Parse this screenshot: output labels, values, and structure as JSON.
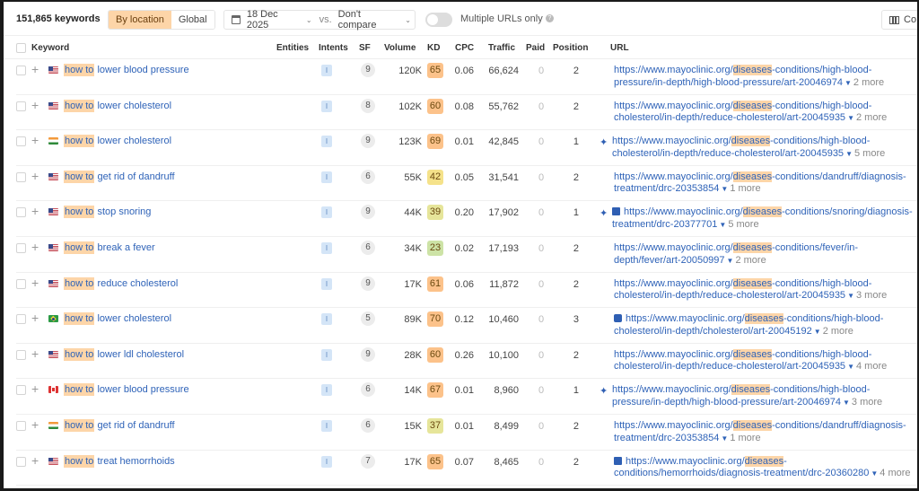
{
  "toolbar": {
    "keyword_count": "151,865 keywords",
    "scope_options": [
      {
        "label": "By location",
        "active": true
      },
      {
        "label": "Global",
        "active": false
      }
    ],
    "date": "18 Dec 2025",
    "vs_label": "vs.",
    "compare": "Don't compare",
    "toggle_label": "Multiple URLs only",
    "toggle_on": false,
    "columns_label": "Co"
  },
  "columns": [
    "Keyword",
    "Entities",
    "Intents",
    "SF",
    "Volume",
    "KD",
    "CPC",
    "Traffic",
    "Paid",
    "Position",
    "URL"
  ],
  "colors": {
    "accent_highlight": "#fdd5a8",
    "link": "#2f63b8",
    "intent_bg": "#d4e5f7",
    "kd_hard": "#fcc28a",
    "kd_medium": "#f5e28a",
    "kd_easy_medium": "#e6e59a",
    "kd_easy": "#cde3a6"
  },
  "rows": [
    {
      "flag": "us",
      "kw_hl": "how to",
      "kw_rest": " lower blood pressure",
      "intent": "I",
      "sf": "9",
      "volume": "120K",
      "kd": "65",
      "kd_color": "#fcc28a",
      "cpc": "0.06",
      "traffic": "66,624",
      "paid": "0",
      "position": "2",
      "feature": "",
      "url_pre": "https://www.mayoclinic.org/",
      "url_hl": "diseases",
      "url_post": "-conditions/high-blood-pressure/in-depth/high-blood-pressure/art-20046974",
      "more": "2 more"
    },
    {
      "flag": "us",
      "kw_hl": "how to",
      "kw_rest": " lower cholesterol",
      "intent": "I",
      "sf": "8",
      "volume": "102K",
      "kd": "60",
      "kd_color": "#fcc28a",
      "cpc": "0.08",
      "traffic": "55,762",
      "paid": "0",
      "position": "2",
      "feature": "",
      "url_pre": "https://www.mayoclinic.org/",
      "url_hl": "diseases",
      "url_post": "-conditions/high-blood-cholesterol/in-depth/reduce-cholesterol/art-20045935",
      "more": "2 more"
    },
    {
      "flag": "in",
      "kw_hl": "how to",
      "kw_rest": " lower cholesterol",
      "intent": "I",
      "sf": "9",
      "volume": "123K",
      "kd": "69",
      "kd_color": "#fcc28a",
      "cpc": "0.01",
      "traffic": "42,845",
      "paid": "0",
      "position": "1",
      "feature": "sparkle",
      "url_pre": "https://www.mayoclinic.org/",
      "url_hl": "diseases",
      "url_post": "-conditions/high-blood-cholesterol/in-depth/reduce-cholesterol/art-20045935",
      "more": "5 more"
    },
    {
      "flag": "us",
      "kw_hl": "how to",
      "kw_rest": " get rid of dandruff",
      "intent": "I",
      "sf": "6",
      "volume": "55K",
      "kd": "42",
      "kd_color": "#f5e28a",
      "cpc": "0.05",
      "traffic": "31,541",
      "paid": "0",
      "position": "2",
      "feature": "",
      "url_pre": "https://www.mayoclinic.org/",
      "url_hl": "diseases",
      "url_post": "-conditions/dandruff/diagnosis-treatment/drc-20353854",
      "more": "1 more"
    },
    {
      "flag": "us",
      "kw_hl": "how to",
      "kw_rest": " stop snoring",
      "intent": "I",
      "sf": "9",
      "volume": "44K",
      "kd": "39",
      "kd_color": "#e6e59a",
      "cpc": "0.20",
      "traffic": "17,902",
      "paid": "0",
      "position": "1",
      "feature": "sparkle+image",
      "url_pre": "https://www.mayoclinic.org/",
      "url_hl": "diseases",
      "url_post": "-conditions/snoring/diagnosis-treatment/drc-20377701",
      "more": "5 more"
    },
    {
      "flag": "us",
      "kw_hl": "how to",
      "kw_rest": " break a fever",
      "intent": "I",
      "sf": "6",
      "volume": "34K",
      "kd": "23",
      "kd_color": "#cde3a6",
      "cpc": "0.02",
      "traffic": "17,193",
      "paid": "0",
      "position": "2",
      "feature": "",
      "url_pre": "https://www.mayoclinic.org/",
      "url_hl": "diseases",
      "url_post": "-conditions/fever/in-depth/fever/art-20050997",
      "more": "2 more"
    },
    {
      "flag": "us",
      "kw_hl": "how to",
      "kw_rest": " reduce cholesterol",
      "intent": "I",
      "sf": "9",
      "volume": "17K",
      "kd": "61",
      "kd_color": "#fcc28a",
      "cpc": "0.06",
      "traffic": "11,872",
      "paid": "0",
      "position": "2",
      "feature": "",
      "url_pre": "https://www.mayoclinic.org/",
      "url_hl": "diseases",
      "url_post": "-conditions/high-blood-cholesterol/in-depth/reduce-cholesterol/art-20045935",
      "more": "3 more"
    },
    {
      "flag": "br",
      "kw_hl": "how to",
      "kw_rest": " lower cholesterol",
      "intent": "I",
      "sf": "5",
      "volume": "89K",
      "kd": "70",
      "kd_color": "#fcc28a",
      "cpc": "0.12",
      "traffic": "10,460",
      "paid": "0",
      "position": "3",
      "feature": "faq",
      "url_pre": "https://www.mayoclinic.org/",
      "url_hl": "diseases",
      "url_post": "-conditions/high-blood-cholesterol/in-depth/cholesterol/art-20045192",
      "more": "2 more"
    },
    {
      "flag": "us",
      "kw_hl": "how to",
      "kw_rest": " lower ldl cholesterol",
      "intent": "I",
      "sf": "9",
      "volume": "28K",
      "kd": "60",
      "kd_color": "#fcc28a",
      "cpc": "0.26",
      "traffic": "10,100",
      "paid": "0",
      "position": "2",
      "feature": "",
      "url_pre": "https://www.mayoclinic.org/",
      "url_hl": "diseases",
      "url_post": "-conditions/high-blood-cholesterol/in-depth/reduce-cholesterol/art-20045935",
      "more": "4 more"
    },
    {
      "flag": "ca",
      "kw_hl": "how to",
      "kw_rest": " lower blood pressure",
      "intent": "I",
      "sf": "6",
      "volume": "14K",
      "kd": "67",
      "kd_color": "#fcc28a",
      "cpc": "0.01",
      "traffic": "8,960",
      "paid": "0",
      "position": "1",
      "feature": "sparkle",
      "url_pre": "https://www.mayoclinic.org/",
      "url_hl": "diseases",
      "url_post": "-conditions/high-blood-pressure/in-depth/high-blood-pressure/art-20046974",
      "more": "3 more"
    },
    {
      "flag": "in",
      "kw_hl": "how to",
      "kw_rest": " get rid of dandruff",
      "intent": "I",
      "sf": "6",
      "volume": "15K",
      "kd": "37",
      "kd_color": "#e6e59a",
      "cpc": "0.01",
      "traffic": "8,499",
      "paid": "0",
      "position": "2",
      "feature": "",
      "url_pre": "https://www.mayoclinic.org/",
      "url_hl": "diseases",
      "url_post": "-conditions/dandruff/diagnosis-treatment/drc-20353854",
      "more": "1 more"
    },
    {
      "flag": "us",
      "kw_hl": "how to",
      "kw_rest": " treat hemorrhoids",
      "intent": "I",
      "sf": "7",
      "volume": "17K",
      "kd": "65",
      "kd_color": "#fcc28a",
      "cpc": "0.07",
      "traffic": "8,465",
      "paid": "0",
      "position": "2",
      "feature": "image",
      "url_pre": "https://www.mayoclinic.org/",
      "url_hl": "diseases",
      "url_post": "-conditions/hemorrhoids/diagnosis-treatment/drc-20360280",
      "more": "4 more"
    }
  ]
}
